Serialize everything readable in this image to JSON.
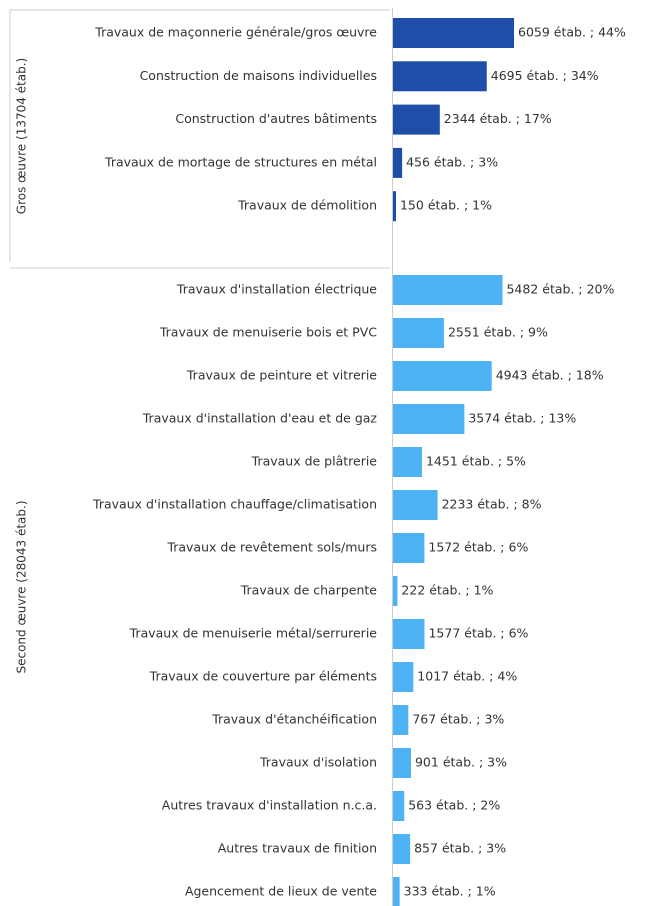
{
  "chart_data": {
    "type": "bar",
    "orientation": "horizontal",
    "groups": [
      {
        "name": "Gros œuvre (13704 étab.)",
        "color": "#1f4ea8",
        "categories": [
          "Travaux de maçonnerie générale/gros œuvre",
          "Construction de maisons individuelles",
          "Construction d'autres bâtiments",
          "Travaux de mortage de structures en métal",
          "Travaux de démolition"
        ],
        "values": [
          6059,
          4695,
          2344,
          456,
          150
        ],
        "value_labels": [
          "6059 étab. ; 44%",
          "4695 étab. ; 34%",
          "2344 étab. ; 17%",
          "456 étab. ; 3%",
          "150 étab. ; 1%"
        ]
      },
      {
        "name": "Second œuvre (28043 étab.)",
        "color": "#4db3f5",
        "categories": [
          "Travaux d'installation électrique",
          "Travaux de menuiserie bois et PVC",
          "Travaux de peinture et vitrerie",
          "Travaux d'installation d'eau et de gaz",
          "Travaux de plâtrerie",
          "Travaux d'installation chauffage/climatisation",
          "Travaux de revêtement sols/murs",
          "Travaux de charpente",
          "Travaux de menuiserie métal/serrurerie",
          "Travaux de couverture par éléments",
          "Travaux d'étanchéification",
          "Travaux d'isolation",
          "Autres travaux d'installation n.c.a.",
          "Autres travaux de finition",
          "Agencement de lieux de vente"
        ],
        "values": [
          5482,
          2551,
          4943,
          3574,
          1451,
          2233,
          1572,
          222,
          1577,
          1017,
          767,
          901,
          563,
          857,
          333
        ],
        "value_labels": [
          "5482 étab. ; 20%",
          "2551 étab. ; 9%",
          "4943 étab. ; 18%",
          "3574 étab. ; 13%",
          "1451 étab. ; 5%",
          "2233 étab. ; 8%",
          "1572 étab. ; 6%",
          "222 étab. ; 1%",
          "1577 étab. ; 6%",
          "1017 étab. ; 4%",
          "767 étab. ; 3%",
          "901 étab. ; 3%",
          "563 étab. ; 2%",
          "857 étab. ; 3%",
          "333 étab. ; 1%"
        ]
      }
    ]
  }
}
